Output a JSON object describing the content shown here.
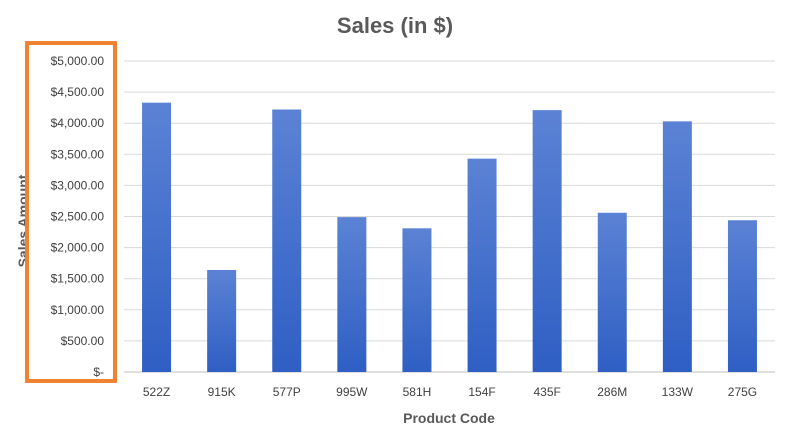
{
  "chart_data": {
    "type": "bar",
    "title": "Sales (in $)",
    "xlabel": "Product Code",
    "ylabel": "Sales Amount",
    "categories": [
      "522Z",
      "915K",
      "577P",
      "995W",
      "581H",
      "154F",
      "435F",
      "286M",
      "133W",
      "275G"
    ],
    "values": [
      4330,
      1640,
      4220,
      2490,
      2310,
      3430,
      4210,
      2560,
      4030,
      2440
    ],
    "ylim": [
      0,
      5000
    ],
    "yticks": [
      0,
      500,
      1000,
      1500,
      2000,
      2500,
      3000,
      3500,
      4000,
      4500,
      5000
    ],
    "ytick_labels": [
      "$-",
      "$500.00",
      "$1,000.00",
      "$1,500.00",
      "$2,000.00",
      "$2,500.00",
      "$3,000.00",
      "$3,500.00",
      "$4,000.00",
      "$4,500.00",
      "$5,000.00"
    ],
    "grid": true,
    "legend": "none",
    "bar_color_top": "#5b82d4",
    "bar_color_bottom": "#2f5fc4",
    "highlight_color": "#f08232"
  }
}
